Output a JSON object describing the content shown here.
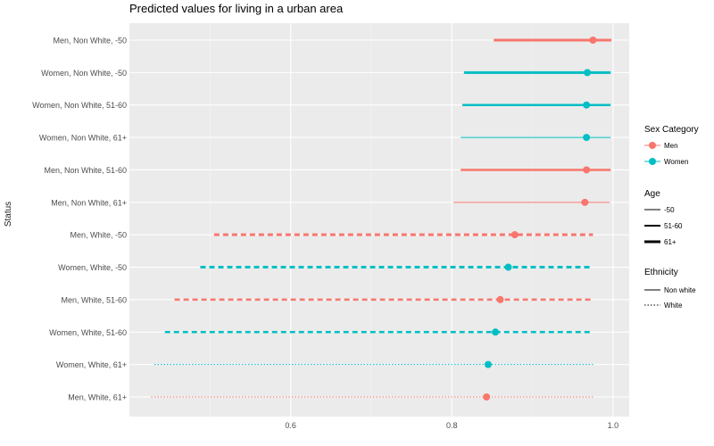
{
  "chart_data": {
    "type": "scatter",
    "title": "Predicted values for living in a urban area",
    "xlabel": "",
    "ylabel": "Status",
    "xlim": [
      0.4,
      1.02
    ],
    "x_ticks": [
      0.6,
      0.8,
      1.0
    ],
    "x_tick_labels": [
      "0.6",
      "0.8",
      "1.0"
    ],
    "grid": true,
    "legend_placement": "right",
    "colors": {
      "Men": "#F8766D",
      "Women": "#00BFC4",
      "panel": "#EBEBEB",
      "grid": "#FFFFFF"
    },
    "rows": [
      {
        "label": "Men, Non White, -50",
        "sex": "Men",
        "ethnicity": "Non white",
        "age": "-50",
        "estimate": 0.975,
        "lower": 0.852,
        "upper": 0.998
      },
      {
        "label": "Women, Non White, -50",
        "sex": "Women",
        "ethnicity": "Non white",
        "age": "-50",
        "estimate": 0.968,
        "lower": 0.815,
        "upper": 0.997
      },
      {
        "label": "Women, Non White, 51-60",
        "sex": "Women",
        "ethnicity": "Non white",
        "age": "51-60",
        "estimate": 0.967,
        "lower": 0.813,
        "upper": 0.997
      },
      {
        "label": "Women, Non White, 61+",
        "sex": "Women",
        "ethnicity": "Non white",
        "age": "61+",
        "estimate": 0.967,
        "lower": 0.811,
        "upper": 0.997
      },
      {
        "label": "Men, Non White, 51-60",
        "sex": "Men",
        "ethnicity": "Non white",
        "age": "51-60",
        "estimate": 0.967,
        "lower": 0.811,
        "upper": 0.997
      },
      {
        "label": "Men, Non White, 61+",
        "sex": "Men",
        "ethnicity": "Non white",
        "age": "61+",
        "estimate": 0.965,
        "lower": 0.802,
        "upper": 0.996
      },
      {
        "label": "Men, White, -50",
        "sex": "Men",
        "ethnicity": "White",
        "age": "-50",
        "estimate": 0.878,
        "lower": 0.505,
        "upper": 0.975
      },
      {
        "label": "Women, White, -50",
        "sex": "Women",
        "ethnicity": "White",
        "age": "-50",
        "estimate": 0.87,
        "lower": 0.488,
        "upper": 0.975
      },
      {
        "label": "Men, White, 51-60",
        "sex": "Men",
        "ethnicity": "White",
        "age": "51-60",
        "estimate": 0.86,
        "lower": 0.456,
        "upper": 0.975
      },
      {
        "label": "Women, White, 51-60",
        "sex": "Women",
        "ethnicity": "White",
        "age": "51-60",
        "estimate": 0.854,
        "lower": 0.444,
        "upper": 0.975
      },
      {
        "label": "Women, White, 61+",
        "sex": "Women",
        "ethnicity": "White",
        "age": "61+",
        "estimate": 0.845,
        "lower": 0.431,
        "upper": 0.975
      },
      {
        "label": "Men, White, 61+",
        "sex": "Men",
        "ethnicity": "White",
        "age": "61+",
        "estimate": 0.843,
        "lower": 0.427,
        "upper": 0.975
      }
    ],
    "legend": {
      "sex": {
        "title": "Sex Category",
        "items": [
          "Men",
          "Women"
        ]
      },
      "age": {
        "title": "Age",
        "items": [
          "-50",
          "51-60",
          "61+"
        ]
      },
      "ethnicity": {
        "title": "Ethnicity",
        "items": [
          "Non white",
          "White"
        ]
      }
    }
  }
}
